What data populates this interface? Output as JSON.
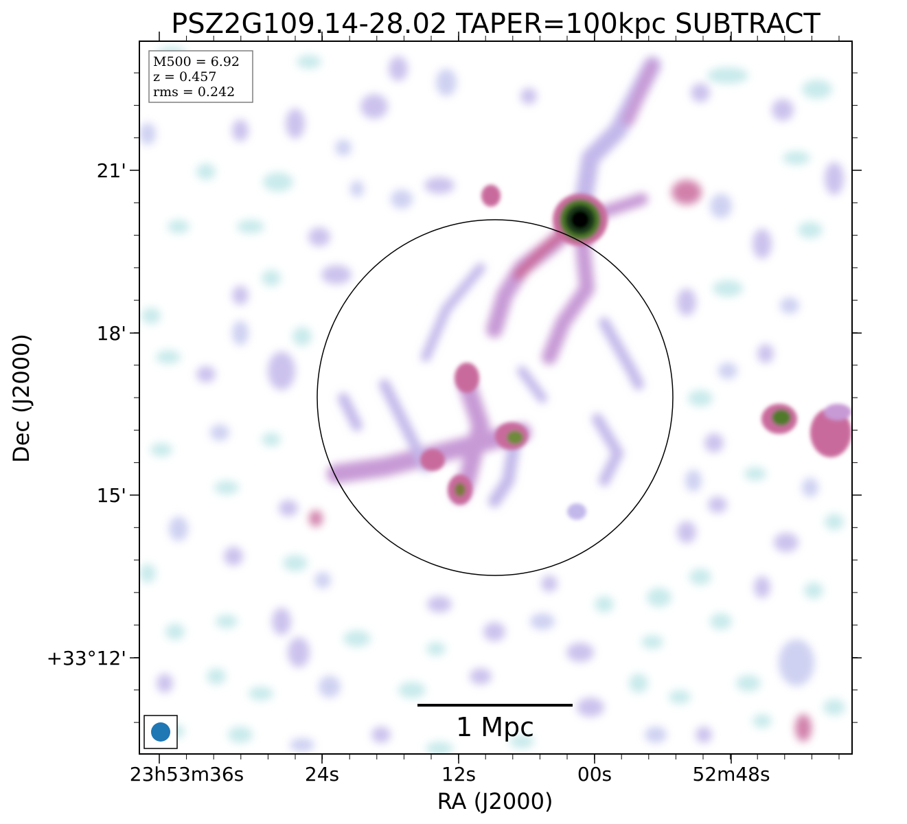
{
  "title": "PSZ2G109.14-28.02 TAPER=100kpc SUBTRACT",
  "info_box": {
    "lines": [
      "M500 = 6.92",
      "z = 0.457",
      "rms = 0.242"
    ]
  },
  "axes": {
    "xlabel": "RA (J2000)",
    "ylabel": "Dec (J2000)",
    "xticks": [
      "23h53m36s",
      "24s",
      "12s",
      "00s",
      "52m48s"
    ],
    "yticks": [
      "21'",
      "18'",
      "15'",
      "+33°12'"
    ]
  },
  "scalebar": {
    "label": "1 Mpc"
  },
  "colors": {
    "frame": "#000000",
    "beam": "#1f77b4",
    "emission_faint": "#bfe6e8",
    "emission_low": "#b9c3ee",
    "emission_mid": "#c79ad6",
    "emission_high": "#c96a9c",
    "emission_peak_ring": "#4f7a2b",
    "emission_peak": "#000000"
  }
}
